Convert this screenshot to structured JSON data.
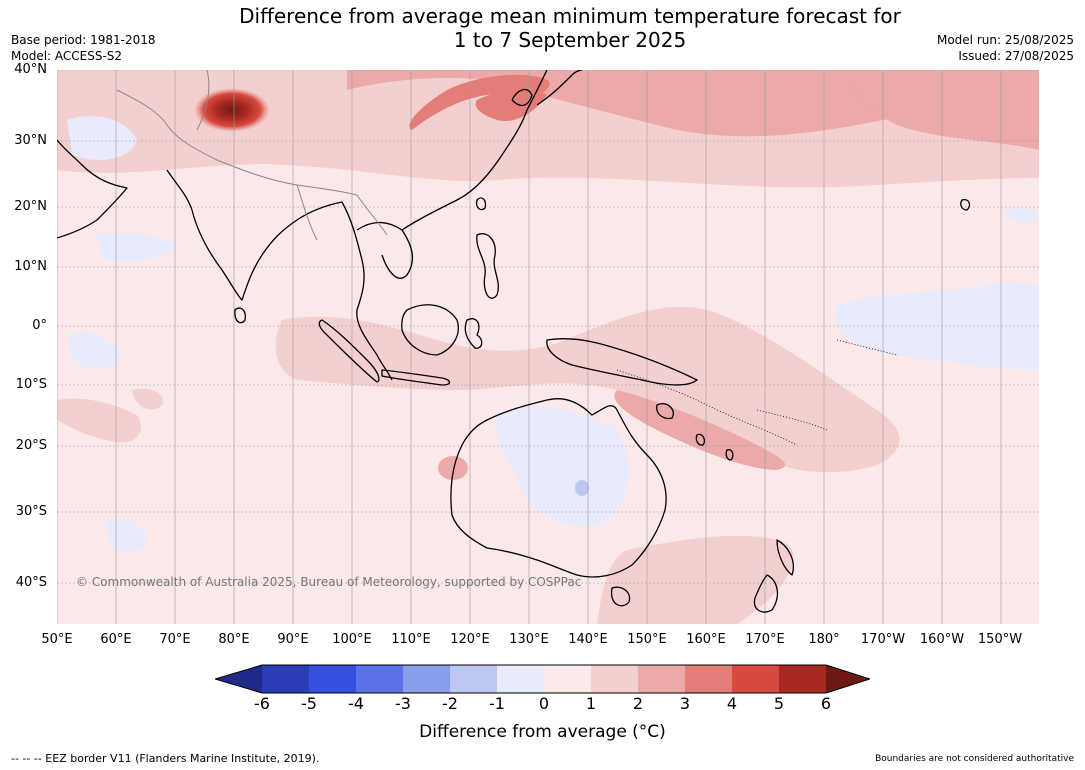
{
  "title_line1": "Difference from average mean minimum temperature forecast for",
  "title_line2": "1 to 7 September 2025",
  "base_period": "Base period: 1981-2018",
  "model": "Model: ACCESS-S2",
  "model_run": "Model run: 25/08/2025",
  "issued": "Issued: 27/08/2025",
  "copyright": "© Commonwealth of Australia 2025, Bureau of Meteorology, supported by COSPPac",
  "lat_ticks": [
    "40°N",
    "30°N",
    "20°N",
    "10°N",
    "0°",
    "10°S",
    "20°S",
    "30°S",
    "40°S"
  ],
  "lon_ticks": [
    "50°E",
    "60°E",
    "70°E",
    "80°E",
    "90°E",
    "100°E",
    "110°E",
    "120°E",
    "130°E",
    "140°E",
    "150°E",
    "160°E",
    "170°E",
    "180°",
    "170°W",
    "160°W",
    "150°W"
  ],
  "colorbar": {
    "labels": [
      "-6",
      "-5",
      "-4",
      "-3",
      "-2",
      "-1",
      "0",
      "1",
      "2",
      "3",
      "4",
      "5",
      "6"
    ],
    "colors": [
      "#1f2a8a",
      "#2a3db5",
      "#3350e0",
      "#5b72e6",
      "#8a9cec",
      "#bec6f4",
      "#e8ebfb",
      "#fbe8e8",
      "#f4cfcf",
      "#eca9a9",
      "#e47d78",
      "#d84a3f",
      "#a82921",
      "#6e1a14"
    ],
    "title": "Difference from average (°C)"
  },
  "footer_left": "--  --  -- EEZ border V11 (Flanders Marine Institute, 2019).",
  "footer_right": "Boundaries are not considered authoritative"
}
